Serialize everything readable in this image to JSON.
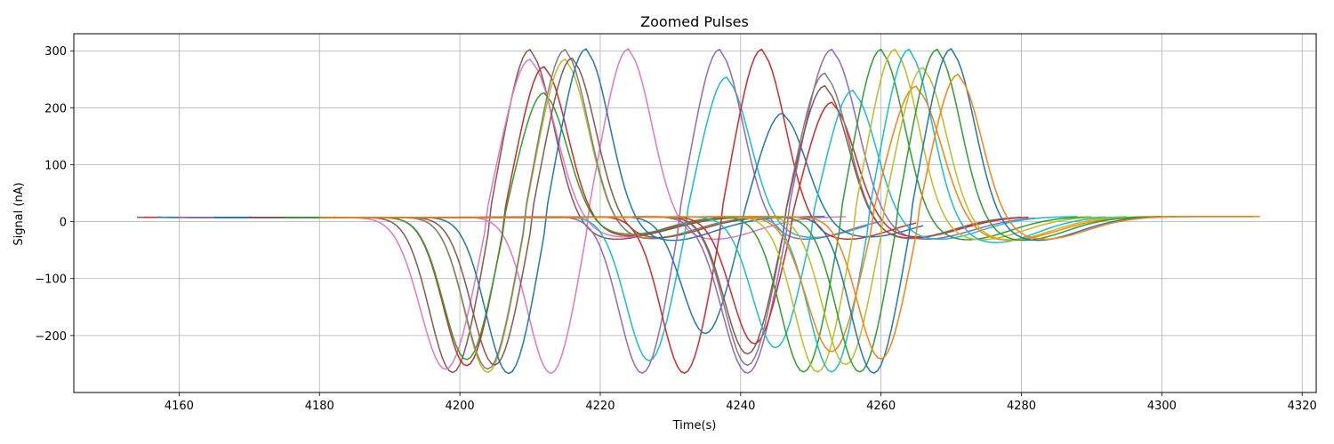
{
  "chart_data": {
    "type": "line",
    "title": "Zoomed Pulses",
    "xlabel": "Time(s)",
    "ylabel": "Signal (nA)",
    "xlim": [
      4145,
      4322
    ],
    "ylim": [
      -300,
      330
    ],
    "xticks": [
      4160,
      4180,
      4200,
      4220,
      4240,
      4260,
      4280,
      4300,
      4320
    ],
    "yticks": [
      -200,
      -100,
      0,
      100,
      200,
      300
    ],
    "grid": true,
    "legend": "none",
    "colors": [
      "#1f77b4",
      "#ff7f0e",
      "#2ca02c",
      "#d62728",
      "#9467bd",
      "#8c564b",
      "#e377c2",
      "#7f7f7f",
      "#bcbd22",
      "#17becf"
    ],
    "series": [
      {
        "color": "#8c564b",
        "start": 4154,
        "end": 4238,
        "x_min": 4199,
        "y_min": -268,
        "x_max": 4210,
        "y_max": 300,
        "tail_y": -34
      },
      {
        "color": "#e377c2",
        "start": 4157,
        "end": 4255,
        "x_min": 4213,
        "y_min": -270,
        "x_max": 4224,
        "y_max": 301,
        "tail_y": -34
      },
      {
        "color": "#e377c2",
        "start": 4157,
        "end": 4240,
        "x_min": 4198,
        "y_min": -262,
        "x_max": 4210,
        "y_max": 283,
        "tail_y": -30
      },
      {
        "color": "#d62728",
        "start": 4155,
        "end": 4240,
        "x_min": 4201,
        "y_min": -256,
        "x_max": 4212,
        "y_max": 270,
        "tail_y": -28
      },
      {
        "color": "#2ca02c",
        "start": 4157,
        "end": 4242,
        "x_min": 4201,
        "y_min": -245,
        "x_max": 4212,
        "y_max": 224,
        "tail_y": -25
      },
      {
        "color": "#bcbd22",
        "start": 4157,
        "end": 4244,
        "x_min": 4204,
        "y_min": -268,
        "x_max": 4215,
        "y_max": 283,
        "tail_y": -32
      },
      {
        "color": "#7f7f7f",
        "start": 4157,
        "end": 4245,
        "x_min": 4204,
        "y_min": -262,
        "x_max": 4215,
        "y_max": 300,
        "tail_y": -33
      },
      {
        "color": "#8c564b",
        "start": 4157,
        "end": 4245,
        "x_min": 4205,
        "y_min": -255,
        "x_max": 4216,
        "y_max": 285,
        "tail_y": -31
      },
      {
        "color": "#1f77b4",
        "start": 4157,
        "end": 4252,
        "x_min": 4207,
        "y_min": -270,
        "x_max": 4218,
        "y_max": 301,
        "tail_y": -36
      },
      {
        "color": "#17becf",
        "start": 4160,
        "end": 4258,
        "x_min": 4227,
        "y_min": -248,
        "x_max": 4238,
        "y_max": 251,
        "tail_y": -31
      },
      {
        "color": "#9467bd",
        "start": 4160,
        "end": 4260,
        "x_min": 4226,
        "y_min": -270,
        "x_max": 4237,
        "y_max": 300,
        "tail_y": -34
      },
      {
        "color": "#d62728",
        "start": 4165,
        "end": 4265,
        "x_min": 4232,
        "y_min": -270,
        "x_max": 4243,
        "y_max": 300,
        "tail_y": -34
      },
      {
        "color": "#1f77b4",
        "start": 4165,
        "end": 4266,
        "x_min": 4235,
        "y_min": -200,
        "x_max": 4246,
        "y_max": 188,
        "tail_y": -30
      },
      {
        "color": "#9467bd",
        "start": 4170,
        "end": 4282,
        "x_min": 4241,
        "y_min": -270,
        "x_max": 4253,
        "y_max": 300,
        "tail_y": -34
      },
      {
        "color": "#d62728",
        "start": 4170,
        "end": 4281,
        "x_min": 4242,
        "y_min": -218,
        "x_max": 4253,
        "y_max": 207,
        "tail_y": -30
      },
      {
        "color": "#7f7f7f",
        "start": 4170,
        "end": 4280,
        "x_min": 4241,
        "y_min": -256,
        "x_max": 4252,
        "y_max": 258,
        "tail_y": -33
      },
      {
        "color": "#8c564b",
        "start": 4170,
        "end": 4280,
        "x_min": 4241,
        "y_min": -236,
        "x_max": 4252,
        "y_max": 236,
        "tail_y": -32
      },
      {
        "color": "#17becf",
        "start": 4175,
        "end": 4288,
        "x_min": 4245,
        "y_min": -225,
        "x_max": 4256,
        "y_max": 228,
        "tail_y": -34
      },
      {
        "color": "#2ca02c",
        "start": 4175,
        "end": 4290,
        "x_min": 4249,
        "y_min": -268,
        "x_max": 4260,
        "y_max": 300,
        "tail_y": -35
      },
      {
        "color": "#bcbd22",
        "start": 4180,
        "end": 4292,
        "x_min": 4251,
        "y_min": -268,
        "x_max": 4262,
        "y_max": 300,
        "tail_y": -35
      },
      {
        "color": "#17becf",
        "start": 4180,
        "end": 4295,
        "x_min": 4253,
        "y_min": -268,
        "x_max": 4264,
        "y_max": 300,
        "tail_y": -40
      },
      {
        "color": "#ff7f0e",
        "start": 4180,
        "end": 4298,
        "x_min": 4253,
        "y_min": -232,
        "x_max": 4265,
        "y_max": 235,
        "tail_y": -36
      },
      {
        "color": "#bcbd22",
        "start": 4182,
        "end": 4300,
        "x_min": 4255,
        "y_min": -255,
        "x_max": 4266,
        "y_max": 268,
        "tail_y": -35
      },
      {
        "color": "#2ca02c",
        "start": 4182,
        "end": 4302,
        "x_min": 4257,
        "y_min": -268,
        "x_max": 4268,
        "y_max": 300,
        "tail_y": -36
      },
      {
        "color": "#1f77b4",
        "start": 4182,
        "end": 4313,
        "x_min": 4259,
        "y_min": -270,
        "x_max": 4270,
        "y_max": 301,
        "tail_y": -36
      },
      {
        "color": "#ff7f0e",
        "start": 4182,
        "end": 4314,
        "x_min": 4260,
        "y_min": -245,
        "x_max": 4271,
        "y_max": 256,
        "tail_y": -34
      }
    ]
  }
}
